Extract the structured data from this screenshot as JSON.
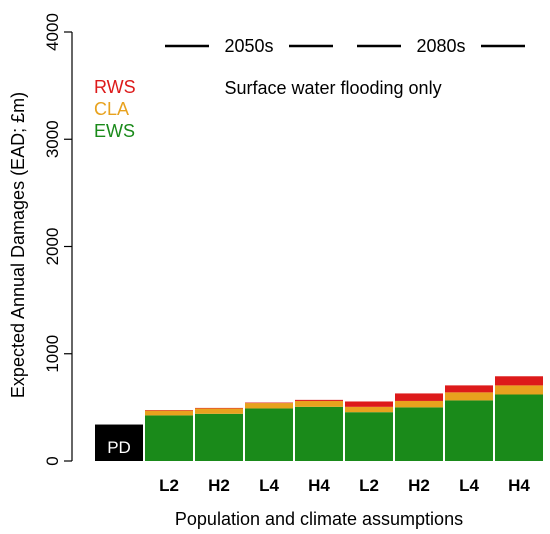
{
  "chart_data": {
    "type": "bar",
    "stacked": true,
    "subtitle": "Surface water flooding only",
    "xlabel": "Population and climate assumptions",
    "ylabel": "Expected Annual Damages (EAD; £m)",
    "ylim": [
      0,
      4000
    ],
    "yticks": [
      0,
      1000,
      2000,
      3000,
      4000
    ],
    "grid": false,
    "legend_position": "top-left",
    "baseline": {
      "label": "PD",
      "value": 340,
      "color": "#000000"
    },
    "period_labels": [
      {
        "label": "2050s",
        "categories": [
          "L2",
          "H2",
          "L4",
          "H4"
        ]
      },
      {
        "label": "2080s",
        "categories": [
          "L2",
          "H2",
          "L4",
          "H4"
        ]
      }
    ],
    "categories": [
      "L2",
      "H2",
      "L4",
      "H4",
      "L2",
      "H2",
      "L4",
      "H4"
    ],
    "series": [
      {
        "name": "EWS",
        "color": "#1a8a1a",
        "values": [
          425,
          440,
          490,
          505,
          455,
          500,
          565,
          620
        ]
      },
      {
        "name": "CLA",
        "color": "#e8a21e",
        "values": [
          45,
          50,
          50,
          55,
          50,
          60,
          75,
          85
        ]
      },
      {
        "name": "RWS",
        "color": "#dd1a1a",
        "values": [
          5,
          5,
          5,
          10,
          50,
          70,
          65,
          85
        ]
      }
    ],
    "legend_order": [
      "RWS",
      "CLA",
      "EWS"
    ]
  }
}
